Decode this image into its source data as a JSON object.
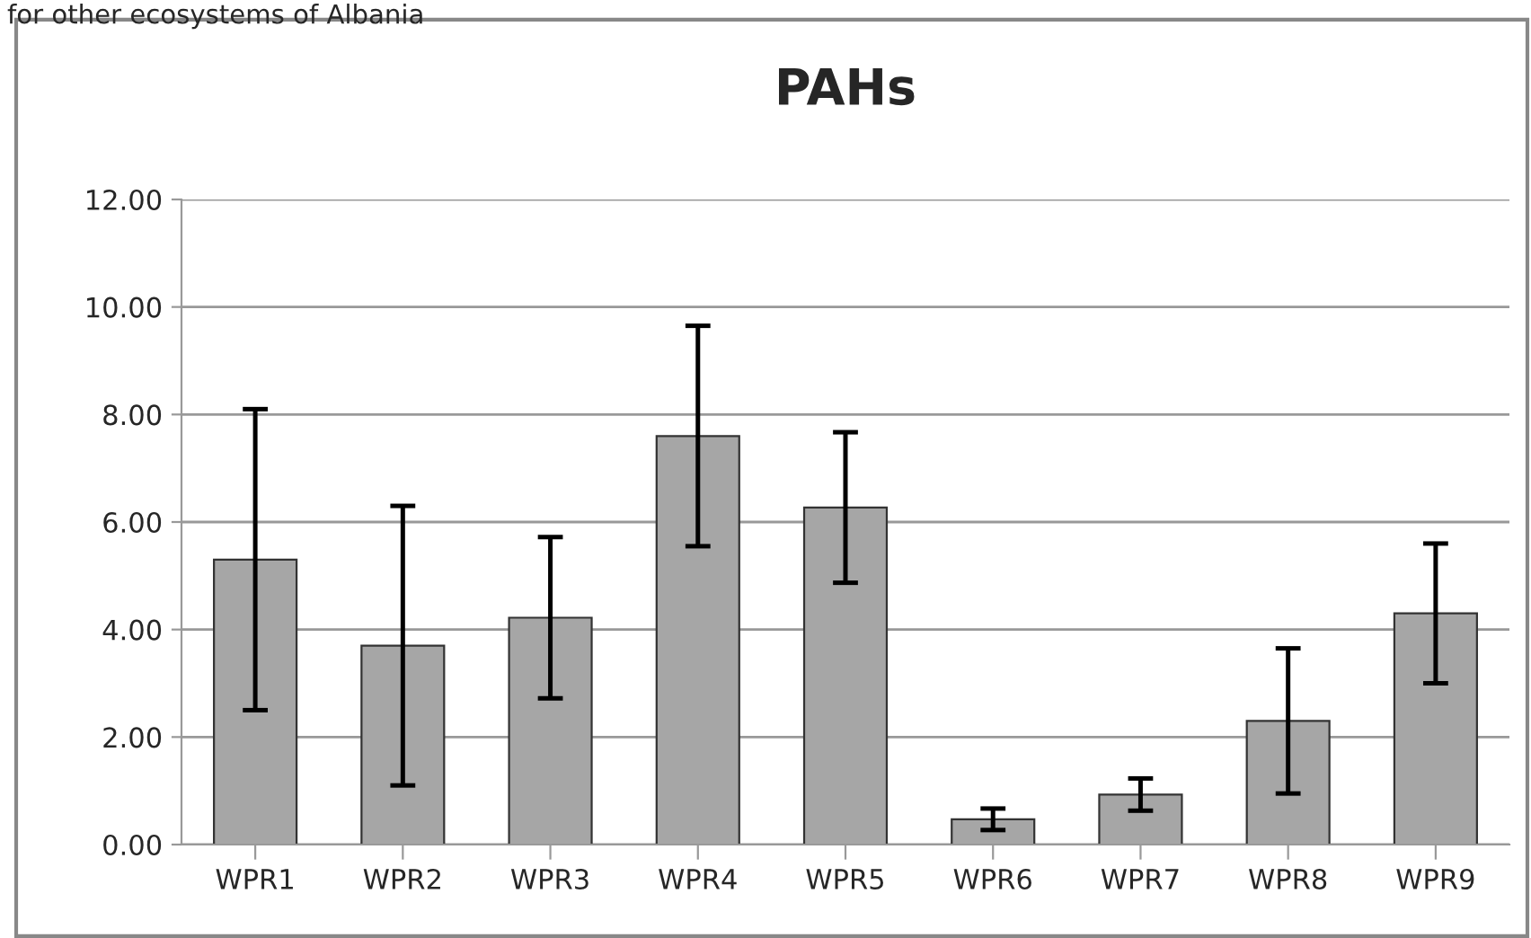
{
  "chart_data": {
    "type": "bar",
    "title": "PAHs",
    "annotations": [
      "for other ecosystems of Albania"
    ],
    "categories": [
      "WPR1",
      "WPR2",
      "WPR3",
      "WPR4",
      "WPR5",
      "WPR6",
      "WPR7",
      "WPR8",
      "WPR9"
    ],
    "values": [
      5.3,
      3.7,
      4.22,
      7.6,
      6.27,
      0.47,
      0.93,
      2.3,
      4.3
    ],
    "errors": [
      2.8,
      2.6,
      1.5,
      2.05,
      1.4,
      0.2,
      0.3,
      1.35,
      1.3
    ],
    "color": "#a6a6a6",
    "ylim": [
      0,
      12
    ],
    "yticks": [
      {
        "value": 0,
        "label": "0.00"
      },
      {
        "value": 2,
        "label": "2.00"
      },
      {
        "value": 4,
        "label": "4.00"
      },
      {
        "value": 6,
        "label": "6.00"
      },
      {
        "value": 8,
        "label": "8.00"
      },
      {
        "value": 10,
        "label": "10.00"
      },
      {
        "value": 12,
        "label": "12.00"
      }
    ],
    "grid": "y",
    "legend": false
  }
}
